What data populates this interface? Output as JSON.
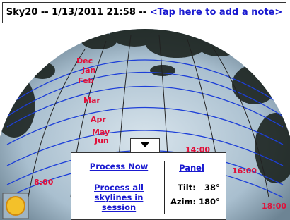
{
  "header": {
    "title": "Sky20 -- 1/13/2011 21:58 --",
    "note_link": "<Tap here to add a note>"
  },
  "sun_path": {
    "months": [
      "Dec",
      "Jan",
      "Feb",
      "Mar",
      "Apr",
      "May",
      "Jun"
    ],
    "hours": [
      "8:00",
      "14:00",
      "16:00",
      "18:00"
    ]
  },
  "panel": {
    "process_now": "Process Now",
    "process_all": "Process all skylines in session",
    "panel_link": "Panel",
    "tilt_label": "Tilt:",
    "tilt_value": "38°",
    "azim_label": "Azim:",
    "azim_value": "180°"
  }
}
